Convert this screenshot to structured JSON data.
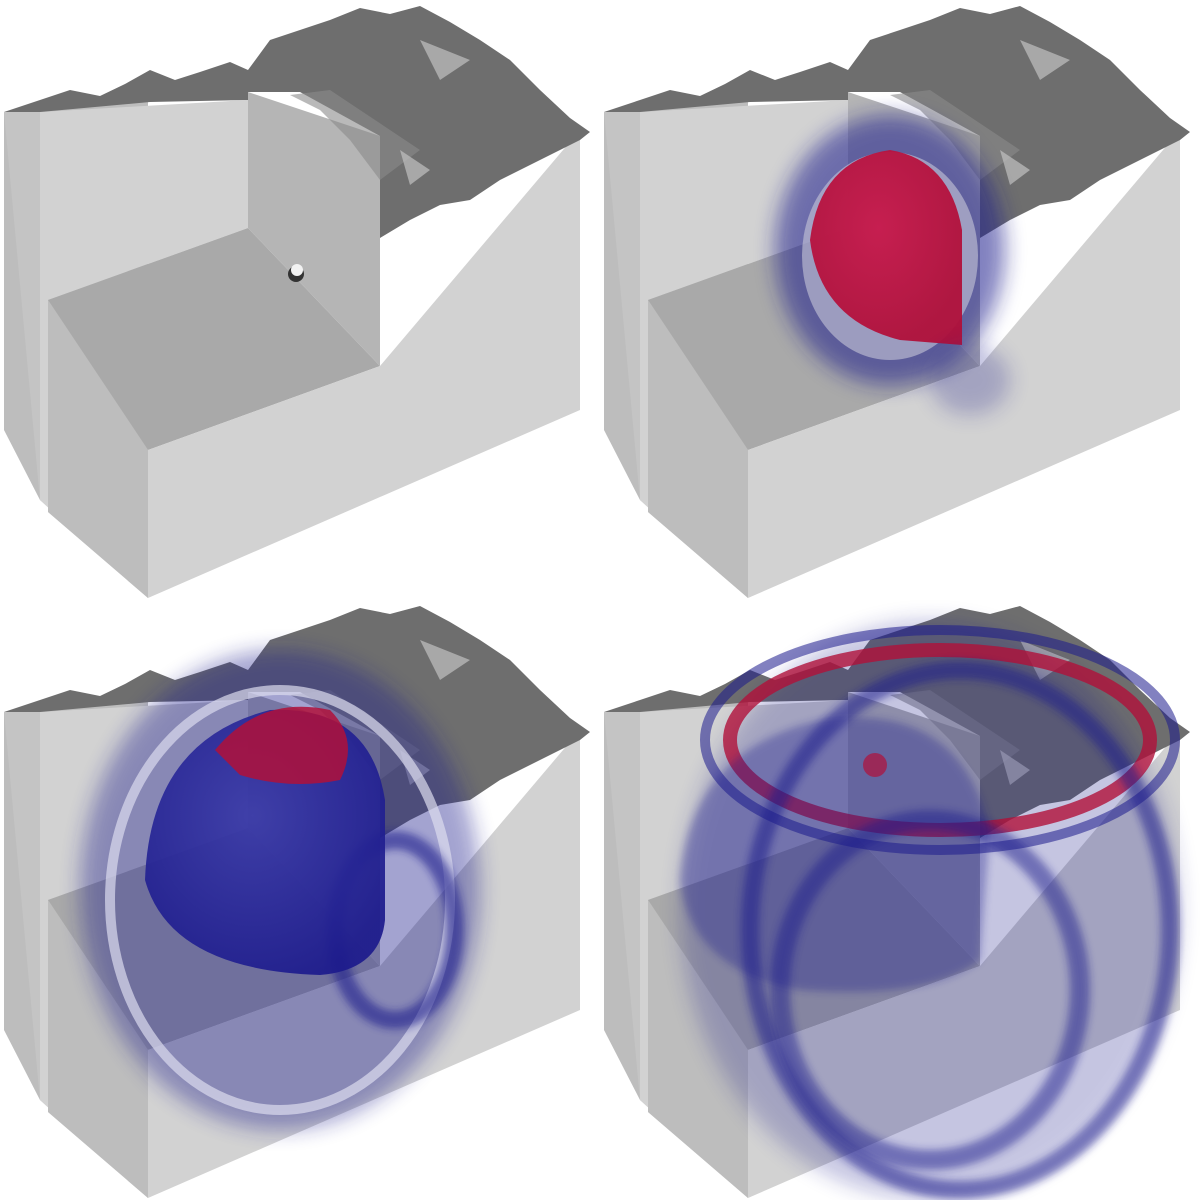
{
  "figure": {
    "panels": [
      {
        "id": "t0",
        "wavefront_stage": 0
      },
      {
        "id": "t1",
        "wavefront_stage": 1
      },
      {
        "id": "t2",
        "wavefront_stage": 2
      },
      {
        "id": "t3",
        "wavefront_stage": 3
      }
    ],
    "colors": {
      "background": "#ffffff",
      "block_front": "#d2d2d2",
      "block_side": "#bdbdbd",
      "cutaway_floor": "#a9a9a9",
      "cutaway_wall": "#b5b5b5",
      "terrain": "#6e6e6e",
      "positive_field": "#b0103a",
      "negative_field": "#1c1a8c",
      "source": "#f2f2f2"
    },
    "icons": [
      "terrain-surface",
      "cutaway-block",
      "wavefront-shell",
      "source-point"
    ]
  }
}
